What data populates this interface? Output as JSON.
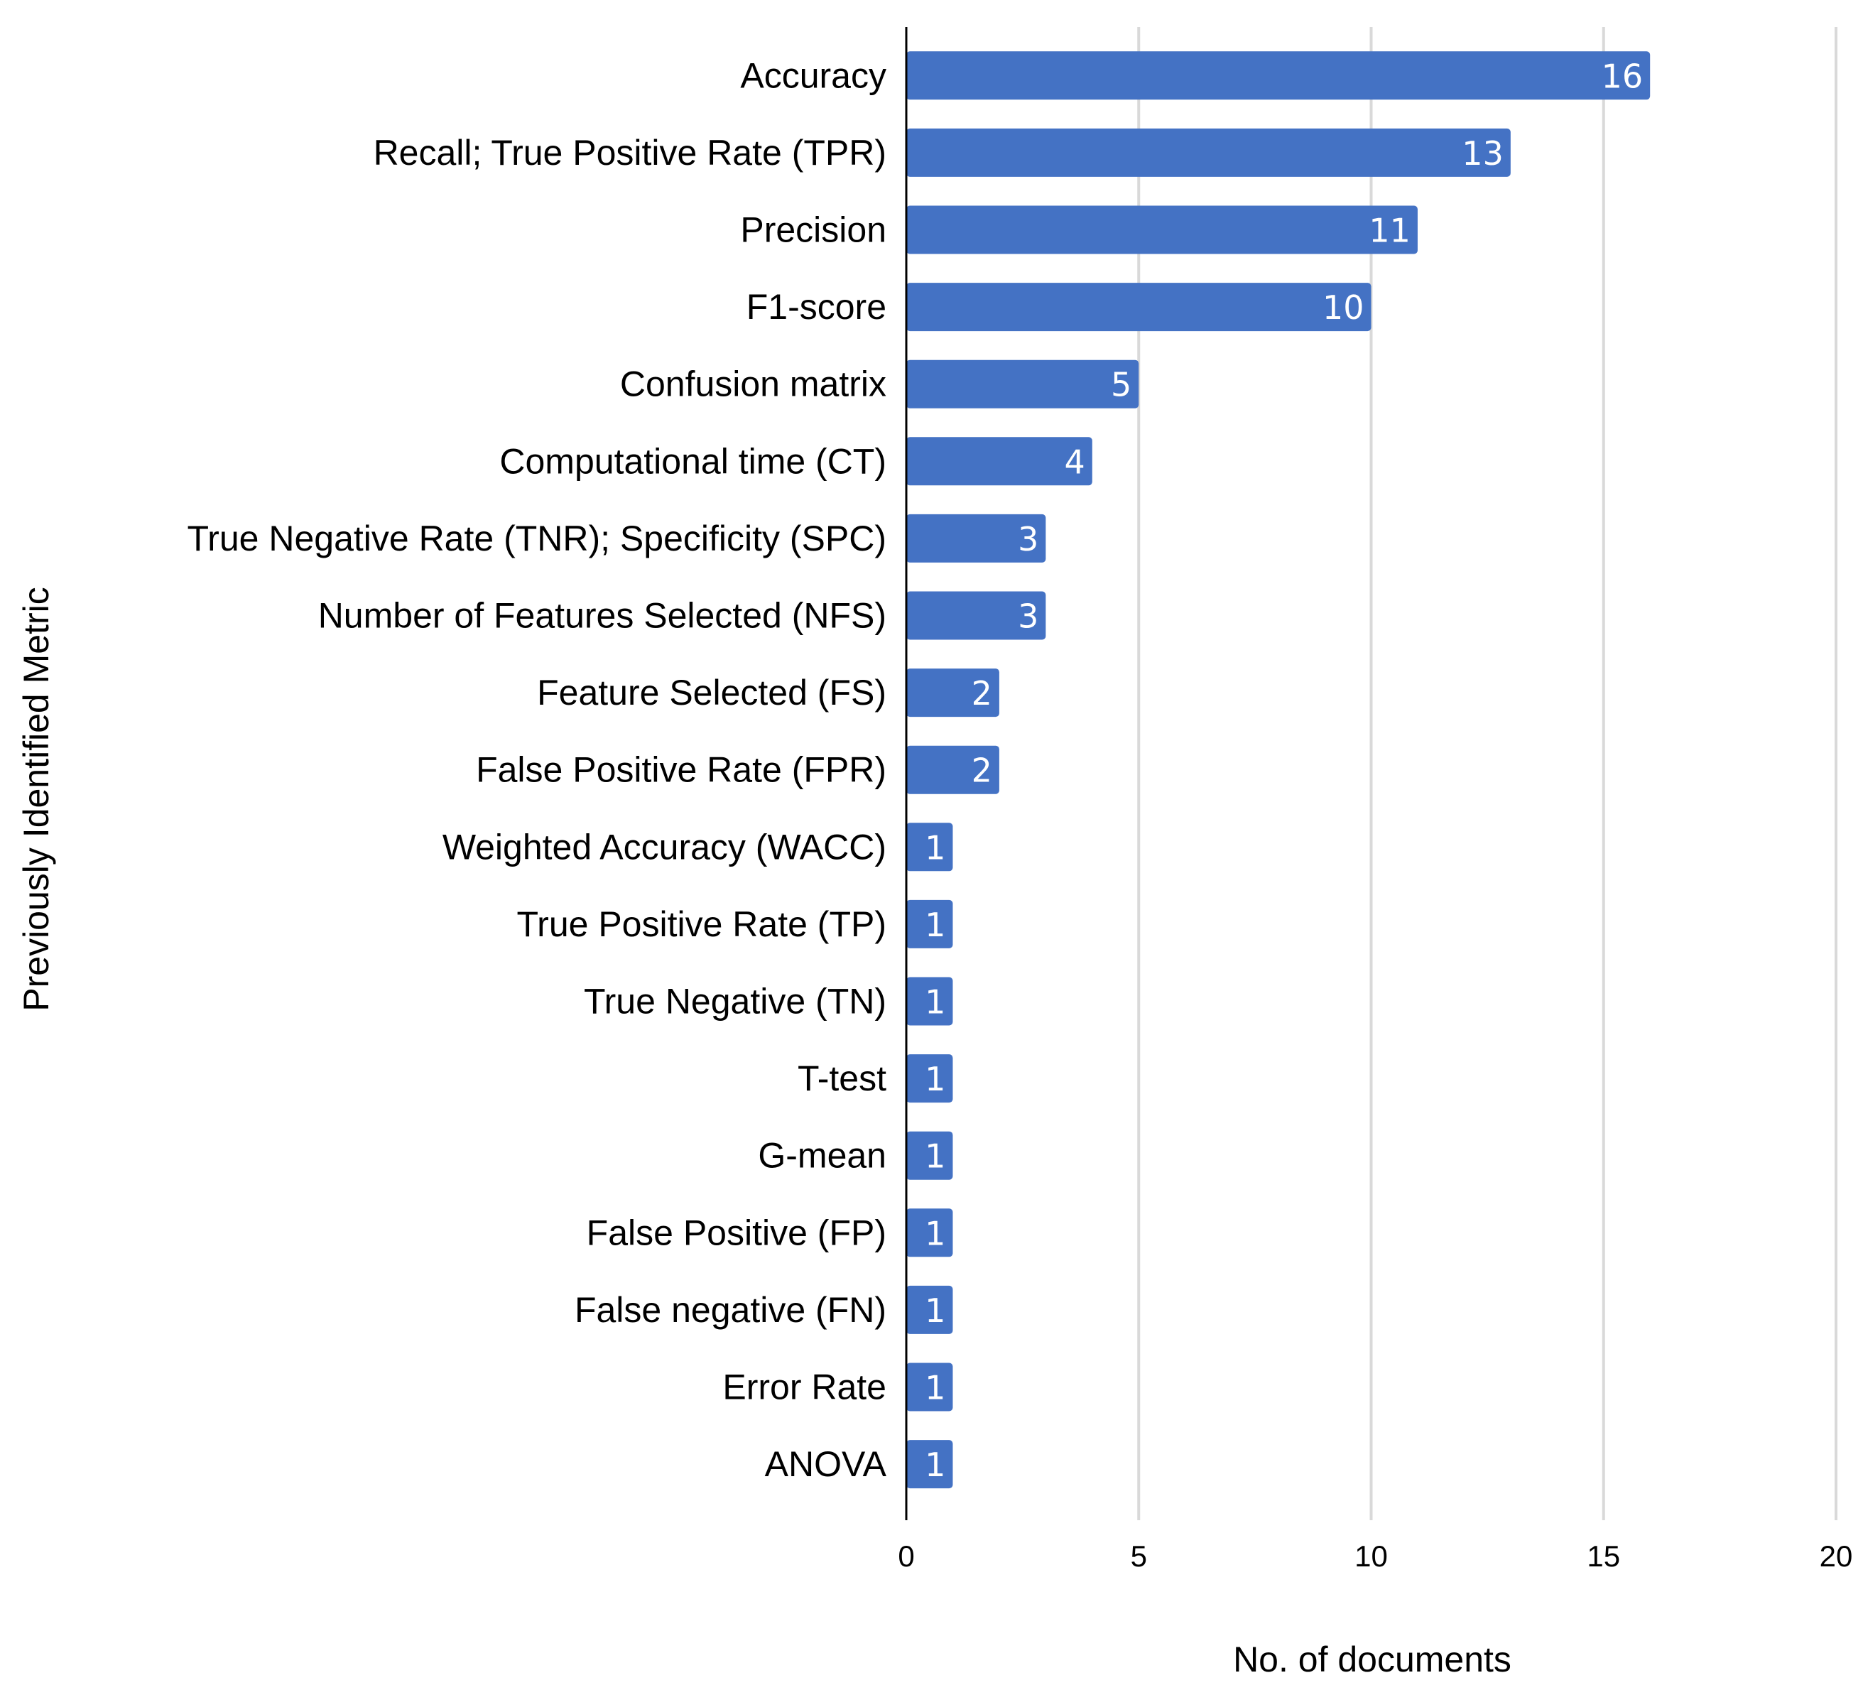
{
  "chart_data": {
    "type": "bar",
    "orientation": "horizontal",
    "title": "",
    "xlabel": "No. of documents",
    "ylabel": "Previously Identified Metric",
    "categories": [
      "Accuracy",
      "Recall; True Positive Rate (TPR)",
      "Precision",
      "F1-score",
      "Confusion matrix",
      "Computational time (CT)",
      "True Negative Rate (TNR); Specificity (SPC)",
      "Number of Features Selected (NFS)",
      "Feature Selected (FS)",
      "False Positive Rate (FPR)",
      "Weighted Accuracy (WACC)",
      "True Positive Rate (TP)",
      "True Negative (TN)",
      "T-test",
      "G-mean",
      "False Positive (FP)",
      "False negative (FN)",
      "Error Rate",
      "ANOVA"
    ],
    "values": [
      16,
      13,
      11,
      10,
      5,
      4,
      3,
      3,
      2,
      2,
      1,
      1,
      1,
      1,
      1,
      1,
      1,
      1,
      1
    ],
    "xlim": [
      0,
      20
    ],
    "xticks": [
      0,
      5,
      10,
      15,
      20
    ],
    "grid": true,
    "legend": "none",
    "bar_color": "#4472c4",
    "gridline_color": "#d9d9d9",
    "data_label_color": "#ffffff"
  }
}
